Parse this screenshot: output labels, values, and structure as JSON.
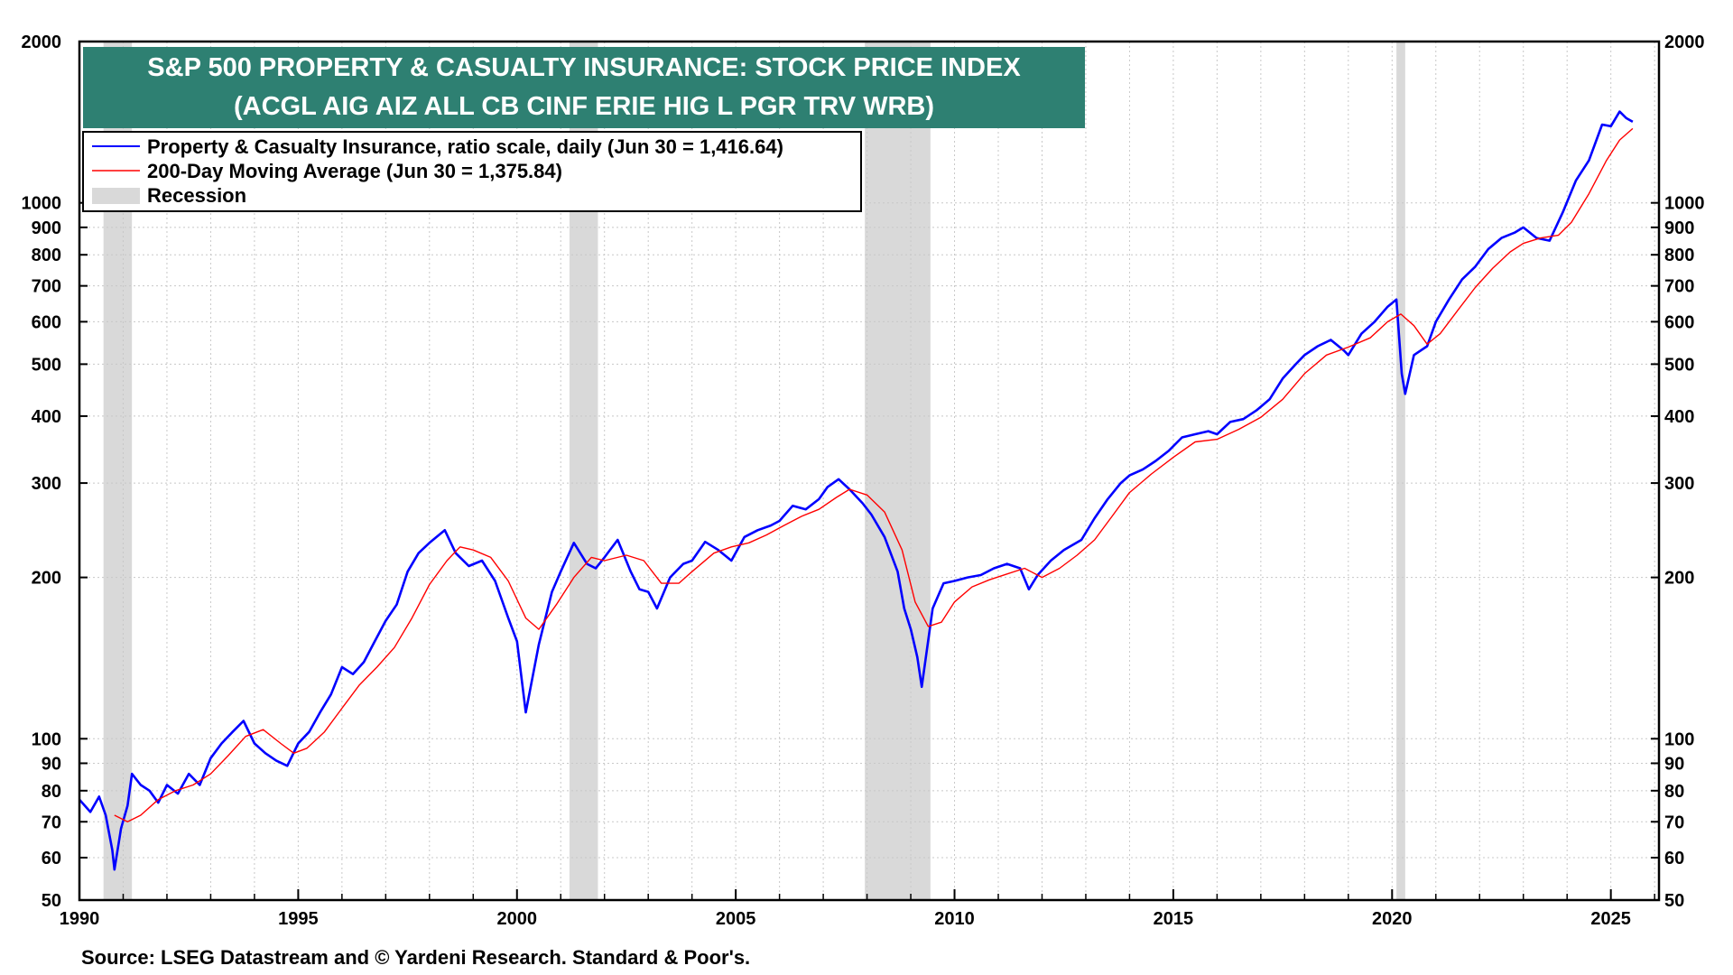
{
  "chart_data": {
    "type": "line",
    "title_line1": "S&P 500 PROPERTY & CASUALTY INSURANCE: STOCK PRICE INDEX",
    "title_line2": "(ACGL AIG AIZ ALL CB CINF ERIE HIG L PGR TRV WRB)",
    "source": "Source: LSEG Datastream and © Yardeni Research. Standard & Poor's.",
    "y_scale": "log",
    "ylim": [
      50,
      2000
    ],
    "xlim": [
      1990,
      2026.1
    ],
    "grid": true,
    "legend_placement": "top-left",
    "y_ticks": [
      {
        "value": 2000,
        "label": "2000"
      },
      {
        "value": 1000,
        "label": "1000"
      },
      {
        "value": 900,
        "label": "900"
      },
      {
        "value": 800,
        "label": "800"
      },
      {
        "value": 700,
        "label": "700"
      },
      {
        "value": 600,
        "label": "600"
      },
      {
        "value": 500,
        "label": "500"
      },
      {
        "value": 400,
        "label": "400"
      },
      {
        "value": 300,
        "label": "300"
      },
      {
        "value": 200,
        "label": "200"
      },
      {
        "value": 100,
        "label": "100"
      },
      {
        "value": 90,
        "label": "90"
      },
      {
        "value": 80,
        "label": "80"
      },
      {
        "value": 70,
        "label": "70"
      },
      {
        "value": 60,
        "label": "60"
      },
      {
        "value": 50,
        "label": "50"
      }
    ],
    "x_ticks": [
      {
        "value": 1990,
        "label": "1990"
      },
      {
        "value": 1995,
        "label": "1995"
      },
      {
        "value": 2000,
        "label": "2000"
      },
      {
        "value": 2005,
        "label": "2005"
      },
      {
        "value": 2010,
        "label": "2010"
      },
      {
        "value": 2015,
        "label": "2015"
      },
      {
        "value": 2020,
        "label": "2020"
      },
      {
        "value": 2025,
        "label": "2025"
      }
    ],
    "recessions": [
      [
        1990.55,
        1991.2
      ],
      [
        2001.2,
        2001.85
      ],
      [
        2007.95,
        2009.45
      ],
      [
        2020.1,
        2020.3
      ]
    ],
    "legend": [
      {
        "label": "Property & Casualty Insurance, ratio scale, daily (Jun 30 = 1,416.64)",
        "color": "#0000ff",
        "kind": "line"
      },
      {
        "label": "200-Day Moving Average (Jun 30 = 1,375.84)",
        "color": "#ff0000",
        "kind": "line"
      },
      {
        "label": "Recession",
        "color": "#d9d9d9",
        "kind": "box"
      }
    ],
    "series": [
      {
        "name": "Property & Casualty Insurance, ratio scale, daily (Jun 30 = 1,416.64)",
        "color": "#0000ff",
        "points": [
          [
            1990.0,
            77
          ],
          [
            1990.25,
            73
          ],
          [
            1990.45,
            78
          ],
          [
            1990.6,
            72
          ],
          [
            1990.75,
            62
          ],
          [
            1990.8,
            57
          ],
          [
            1990.95,
            68
          ],
          [
            1991.1,
            75
          ],
          [
            1991.2,
            86
          ],
          [
            1991.4,
            82
          ],
          [
            1991.6,
            80
          ],
          [
            1991.8,
            76
          ],
          [
            1992.0,
            82
          ],
          [
            1992.25,
            79
          ],
          [
            1992.5,
            86
          ],
          [
            1992.75,
            82
          ],
          [
            1993.0,
            92
          ],
          [
            1993.25,
            98
          ],
          [
            1993.5,
            103
          ],
          [
            1993.75,
            108
          ],
          [
            1994.0,
            98
          ],
          [
            1994.25,
            94
          ],
          [
            1994.5,
            91
          ],
          [
            1994.75,
            89
          ],
          [
            1995.0,
            98
          ],
          [
            1995.25,
            103
          ],
          [
            1995.5,
            112
          ],
          [
            1995.75,
            121
          ],
          [
            1996.0,
            136
          ],
          [
            1996.25,
            132
          ],
          [
            1996.5,
            139
          ],
          [
            1996.75,
            152
          ],
          [
            1997.0,
            166
          ],
          [
            1997.25,
            178
          ],
          [
            1997.5,
            205
          ],
          [
            1997.75,
            222
          ],
          [
            1998.0,
            232
          ],
          [
            1998.35,
            245
          ],
          [
            1998.6,
            222
          ],
          [
            1998.9,
            210
          ],
          [
            1999.2,
            215
          ],
          [
            1999.5,
            197
          ],
          [
            1999.8,
            168
          ],
          [
            2000.0,
            152
          ],
          [
            2000.2,
            112
          ],
          [
            2000.5,
            150
          ],
          [
            2000.8,
            188
          ],
          [
            2001.0,
            205
          ],
          [
            2001.3,
            232
          ],
          [
            2001.6,
            212
          ],
          [
            2001.8,
            208
          ],
          [
            2002.0,
            218
          ],
          [
            2002.3,
            235
          ],
          [
            2002.6,
            205
          ],
          [
            2002.8,
            190
          ],
          [
            2003.0,
            188
          ],
          [
            2003.2,
            175
          ],
          [
            2003.5,
            200
          ],
          [
            2003.8,
            212
          ],
          [
            2004.0,
            215
          ],
          [
            2004.3,
            233
          ],
          [
            2004.6,
            225
          ],
          [
            2004.9,
            215
          ],
          [
            2005.2,
            238
          ],
          [
            2005.5,
            245
          ],
          [
            2005.8,
            250
          ],
          [
            2006.0,
            255
          ],
          [
            2006.3,
            272
          ],
          [
            2006.6,
            268
          ],
          [
            2006.9,
            280
          ],
          [
            2007.1,
            295
          ],
          [
            2007.35,
            305
          ],
          [
            2007.6,
            292
          ],
          [
            2007.9,
            275
          ],
          [
            2008.1,
            262
          ],
          [
            2008.4,
            238
          ],
          [
            2008.7,
            205
          ],
          [
            2008.85,
            175
          ],
          [
            2009.0,
            160
          ],
          [
            2009.15,
            142
          ],
          [
            2009.25,
            125
          ],
          [
            2009.5,
            175
          ],
          [
            2009.75,
            195
          ],
          [
            2010.0,
            197
          ],
          [
            2010.3,
            200
          ],
          [
            2010.6,
            202
          ],
          [
            2010.9,
            208
          ],
          [
            2011.2,
            212
          ],
          [
            2011.5,
            208
          ],
          [
            2011.7,
            190
          ],
          [
            2011.9,
            202
          ],
          [
            2012.2,
            215
          ],
          [
            2012.5,
            225
          ],
          [
            2012.9,
            235
          ],
          [
            2013.2,
            258
          ],
          [
            2013.5,
            280
          ],
          [
            2013.8,
            300
          ],
          [
            2014.0,
            310
          ],
          [
            2014.3,
            318
          ],
          [
            2014.6,
            330
          ],
          [
            2014.9,
            345
          ],
          [
            2015.2,
            365
          ],
          [
            2015.5,
            370
          ],
          [
            2015.8,
            375
          ],
          [
            2016.0,
            370
          ],
          [
            2016.3,
            390
          ],
          [
            2016.6,
            395
          ],
          [
            2016.9,
            410
          ],
          [
            2017.2,
            430
          ],
          [
            2017.5,
            470
          ],
          [
            2017.8,
            500
          ],
          [
            2018.0,
            520
          ],
          [
            2018.3,
            540
          ],
          [
            2018.6,
            555
          ],
          [
            2018.9,
            530
          ],
          [
            2019.0,
            520
          ],
          [
            2019.3,
            570
          ],
          [
            2019.6,
            600
          ],
          [
            2019.9,
            640
          ],
          [
            2020.1,
            660
          ],
          [
            2020.22,
            480
          ],
          [
            2020.3,
            440
          ],
          [
            2020.5,
            520
          ],
          [
            2020.8,
            540
          ],
          [
            2021.0,
            600
          ],
          [
            2021.3,
            660
          ],
          [
            2021.6,
            720
          ],
          [
            2021.9,
            760
          ],
          [
            2022.2,
            820
          ],
          [
            2022.5,
            860
          ],
          [
            2022.8,
            880
          ],
          [
            2023.0,
            900
          ],
          [
            2023.3,
            860
          ],
          [
            2023.6,
            850
          ],
          [
            2023.9,
            960
          ],
          [
            2024.2,
            1100
          ],
          [
            2024.5,
            1200
          ],
          [
            2024.8,
            1400
          ],
          [
            2025.0,
            1390
          ],
          [
            2025.2,
            1480
          ],
          [
            2025.35,
            1440
          ],
          [
            2025.5,
            1416.64
          ]
        ]
      },
      {
        "name": "200-Day Moving Average (Jun 30 = 1,375.84)",
        "color": "#ff0000",
        "points": [
          [
            1990.8,
            72
          ],
          [
            1991.1,
            70
          ],
          [
            1991.4,
            72
          ],
          [
            1991.8,
            77
          ],
          [
            1992.2,
            80
          ],
          [
            1992.6,
            82
          ],
          [
            1993.0,
            86
          ],
          [
            1993.4,
            93
          ],
          [
            1993.8,
            101
          ],
          [
            1994.2,
            104
          ],
          [
            1994.6,
            98
          ],
          [
            1994.9,
            94
          ],
          [
            1995.2,
            96
          ],
          [
            1995.6,
            103
          ],
          [
            1996.0,
            114
          ],
          [
            1996.4,
            126
          ],
          [
            1996.8,
            136
          ],
          [
            1997.2,
            148
          ],
          [
            1997.6,
            168
          ],
          [
            1998.0,
            194
          ],
          [
            1998.4,
            215
          ],
          [
            1998.7,
            228
          ],
          [
            1999.0,
            225
          ],
          [
            1999.4,
            218
          ],
          [
            1999.8,
            197
          ],
          [
            2000.2,
            168
          ],
          [
            2000.5,
            160
          ],
          [
            2000.9,
            178
          ],
          [
            2001.3,
            200
          ],
          [
            2001.7,
            218
          ],
          [
            2002.0,
            215
          ],
          [
            2002.5,
            220
          ],
          [
            2002.9,
            215
          ],
          [
            2003.3,
            195
          ],
          [
            2003.7,
            195
          ],
          [
            2004.0,
            205
          ],
          [
            2004.5,
            222
          ],
          [
            2004.9,
            228
          ],
          [
            2005.3,
            232
          ],
          [
            2005.7,
            240
          ],
          [
            2006.1,
            250
          ],
          [
            2006.5,
            260
          ],
          [
            2006.9,
            268
          ],
          [
            2007.3,
            282
          ],
          [
            2007.6,
            292
          ],
          [
            2008.0,
            285
          ],
          [
            2008.4,
            265
          ],
          [
            2008.8,
            225
          ],
          [
            2009.1,
            180
          ],
          [
            2009.4,
            162
          ],
          [
            2009.7,
            165
          ],
          [
            2010.0,
            180
          ],
          [
            2010.4,
            192
          ],
          [
            2010.8,
            198
          ],
          [
            2011.2,
            203
          ],
          [
            2011.6,
            208
          ],
          [
            2012.0,
            200
          ],
          [
            2012.4,
            208
          ],
          [
            2012.8,
            220
          ],
          [
            2013.2,
            235
          ],
          [
            2013.6,
            260
          ],
          [
            2014.0,
            288
          ],
          [
            2014.5,
            312
          ],
          [
            2015.0,
            335
          ],
          [
            2015.5,
            358
          ],
          [
            2016.0,
            362
          ],
          [
            2016.5,
            378
          ],
          [
            2017.0,
            398
          ],
          [
            2017.5,
            430
          ],
          [
            2018.0,
            480
          ],
          [
            2018.5,
            520
          ],
          [
            2019.0,
            538
          ],
          [
            2019.5,
            560
          ],
          [
            2019.9,
            600
          ],
          [
            2020.2,
            620
          ],
          [
            2020.5,
            590
          ],
          [
            2020.8,
            545
          ],
          [
            2021.1,
            570
          ],
          [
            2021.5,
            630
          ],
          [
            2021.9,
            695
          ],
          [
            2022.3,
            755
          ],
          [
            2022.7,
            810
          ],
          [
            2023.0,
            840
          ],
          [
            2023.4,
            860
          ],
          [
            2023.8,
            870
          ],
          [
            2024.1,
            920
          ],
          [
            2024.5,
            1040
          ],
          [
            2024.9,
            1200
          ],
          [
            2025.2,
            1310
          ],
          [
            2025.5,
            1375.84
          ]
        ]
      }
    ]
  }
}
